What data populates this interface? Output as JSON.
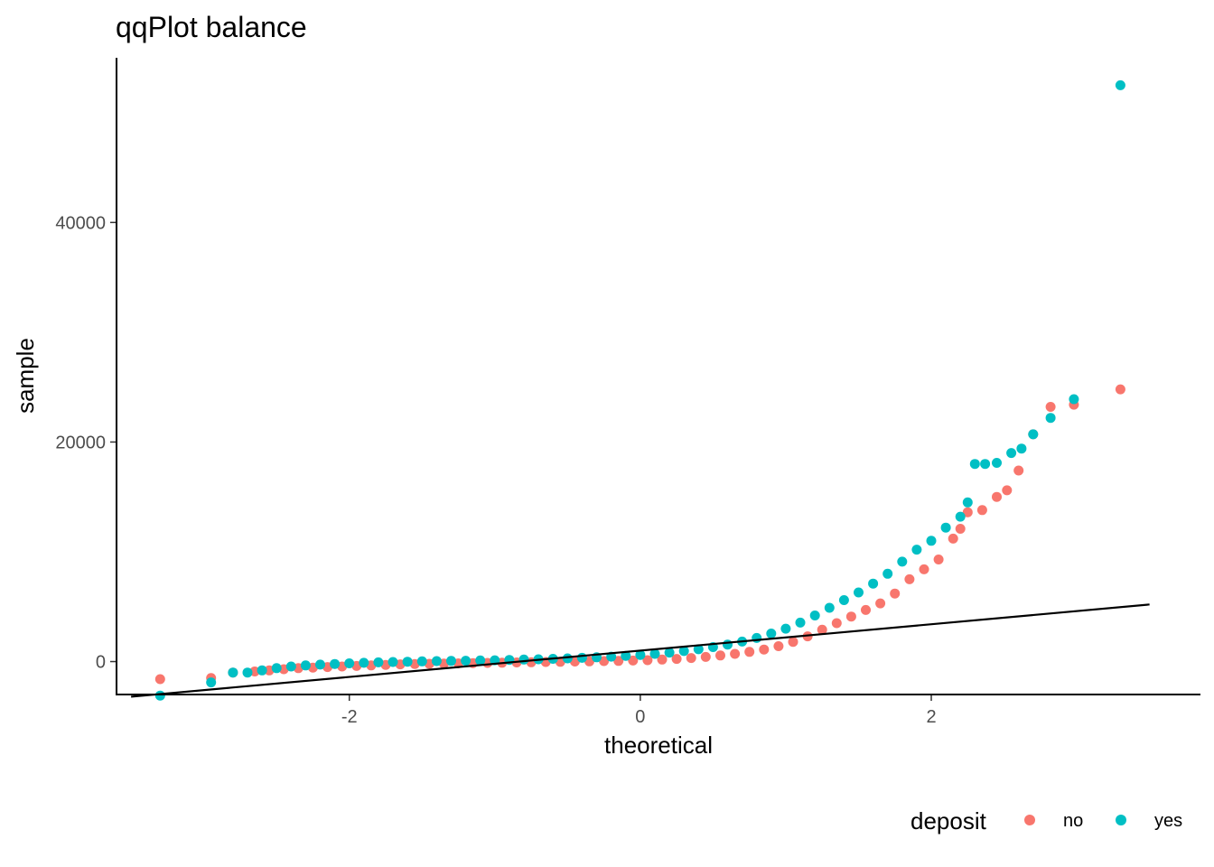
{
  "chart_data": {
    "type": "scatter",
    "title": "qqPlot balance",
    "xlabel": "theoretical",
    "ylabel": "sample",
    "xlim": [
      -3.6,
      3.85
    ],
    "ylim": [
      -3000,
      55000
    ],
    "x_ticks": [
      {
        "value": -2,
        "label": "-2"
      },
      {
        "value": 0,
        "label": "0"
      },
      {
        "value": 2,
        "label": "2"
      }
    ],
    "y_ticks": [
      {
        "value": 0,
        "label": "0"
      },
      {
        "value": 20000,
        "label": "20000"
      },
      {
        "value": 40000,
        "label": "40000"
      }
    ],
    "grid": false,
    "legend": {
      "title": "deposit",
      "position": "bottom-right"
    },
    "series": [
      {
        "name": "no",
        "color": "#F8766D",
        "points": [
          [
            -3.3,
            -1600
          ],
          [
            -2.95,
            -1500
          ],
          [
            -2.8,
            -1000
          ],
          [
            -2.65,
            -900
          ],
          [
            -2.55,
            -800
          ],
          [
            -2.45,
            -700
          ],
          [
            -2.35,
            -600
          ],
          [
            -2.25,
            -550
          ],
          [
            -2.15,
            -500
          ],
          [
            -2.05,
            -450
          ],
          [
            -1.95,
            -400
          ],
          [
            -1.85,
            -350
          ],
          [
            -1.75,
            -300
          ],
          [
            -1.65,
            -250
          ],
          [
            -1.55,
            -220
          ],
          [
            -1.45,
            -200
          ],
          [
            -1.35,
            -180
          ],
          [
            -1.25,
            -160
          ],
          [
            -1.15,
            -140
          ],
          [
            -1.05,
            -120
          ],
          [
            -0.95,
            -100
          ],
          [
            -0.85,
            -80
          ],
          [
            -0.75,
            -60
          ],
          [
            -0.65,
            -40
          ],
          [
            -0.55,
            -20
          ],
          [
            -0.45,
            0
          ],
          [
            -0.35,
            20
          ],
          [
            -0.25,
            40
          ],
          [
            -0.15,
            60
          ],
          [
            -0.05,
            90
          ],
          [
            0.05,
            130
          ],
          [
            0.15,
            180
          ],
          [
            0.25,
            240
          ],
          [
            0.35,
            320
          ],
          [
            0.45,
            420
          ],
          [
            0.55,
            550
          ],
          [
            0.65,
            700
          ],
          [
            0.75,
            880
          ],
          [
            0.85,
            1100
          ],
          [
            0.95,
            1400
          ],
          [
            1.05,
            1800
          ],
          [
            1.15,
            2300
          ],
          [
            1.25,
            2900
          ],
          [
            1.35,
            3500
          ],
          [
            1.45,
            4100
          ],
          [
            1.55,
            4700
          ],
          [
            1.65,
            5300
          ],
          [
            1.75,
            6200
          ],
          [
            1.85,
            7500
          ],
          [
            1.95,
            8400
          ],
          [
            2.05,
            9300
          ],
          [
            2.15,
            11200
          ],
          [
            2.2,
            12100
          ],
          [
            2.25,
            13600
          ],
          [
            2.35,
            13800
          ],
          [
            2.45,
            15000
          ],
          [
            2.52,
            15600
          ],
          [
            2.6,
            17400
          ],
          [
            2.7,
            20700
          ],
          [
            2.82,
            23200
          ],
          [
            2.98,
            23400
          ],
          [
            3.3,
            24800
          ]
        ]
      },
      {
        "name": "yes",
        "color": "#00BFC4",
        "points": [
          [
            -3.3,
            -3100
          ],
          [
            -2.95,
            -1900
          ],
          [
            -2.8,
            -1000
          ],
          [
            -2.7,
            -1000
          ],
          [
            -2.6,
            -800
          ],
          [
            -2.5,
            -600
          ],
          [
            -2.4,
            -450
          ],
          [
            -2.3,
            -350
          ],
          [
            -2.2,
            -280
          ],
          [
            -2.1,
            -220
          ],
          [
            -2.0,
            -160
          ],
          [
            -1.9,
            -110
          ],
          [
            -1.8,
            -70
          ],
          [
            -1.7,
            -40
          ],
          [
            -1.6,
            -10
          ],
          [
            -1.5,
            20
          ],
          [
            -1.4,
            40
          ],
          [
            -1.3,
            60
          ],
          [
            -1.2,
            80
          ],
          [
            -1.1,
            100
          ],
          [
            -1.0,
            120
          ],
          [
            -0.9,
            150
          ],
          [
            -0.8,
            180
          ],
          [
            -0.7,
            210
          ],
          [
            -0.6,
            250
          ],
          [
            -0.5,
            290
          ],
          [
            -0.4,
            340
          ],
          [
            -0.3,
            390
          ],
          [
            -0.2,
            450
          ],
          [
            -0.1,
            520
          ],
          [
            0.0,
            600
          ],
          [
            0.1,
            700
          ],
          [
            0.2,
            820
          ],
          [
            0.3,
            960
          ],
          [
            0.4,
            1120
          ],
          [
            0.5,
            1320
          ],
          [
            0.6,
            1550
          ],
          [
            0.7,
            1820
          ],
          [
            0.8,
            2150
          ],
          [
            0.9,
            2550
          ],
          [
            1.0,
            3000
          ],
          [
            1.1,
            3550
          ],
          [
            1.2,
            4200
          ],
          [
            1.3,
            4900
          ],
          [
            1.4,
            5600
          ],
          [
            1.5,
            6300
          ],
          [
            1.6,
            7100
          ],
          [
            1.7,
            8000
          ],
          [
            1.8,
            9100
          ],
          [
            1.9,
            10200
          ],
          [
            2.0,
            11000
          ],
          [
            2.1,
            12200
          ],
          [
            2.2,
            13200
          ],
          [
            2.25,
            14500
          ],
          [
            2.3,
            18000
          ],
          [
            2.37,
            18000
          ],
          [
            2.45,
            18100
          ],
          [
            2.55,
            19000
          ],
          [
            2.62,
            19400
          ],
          [
            2.7,
            20700
          ],
          [
            2.82,
            22200
          ],
          [
            2.98,
            23900
          ],
          [
            3.3,
            52500
          ]
        ]
      }
    ],
    "reference_line": {
      "color": "#000000",
      "x": [
        -3.5,
        3.5
      ],
      "y": [
        -3200,
        5200
      ]
    }
  }
}
